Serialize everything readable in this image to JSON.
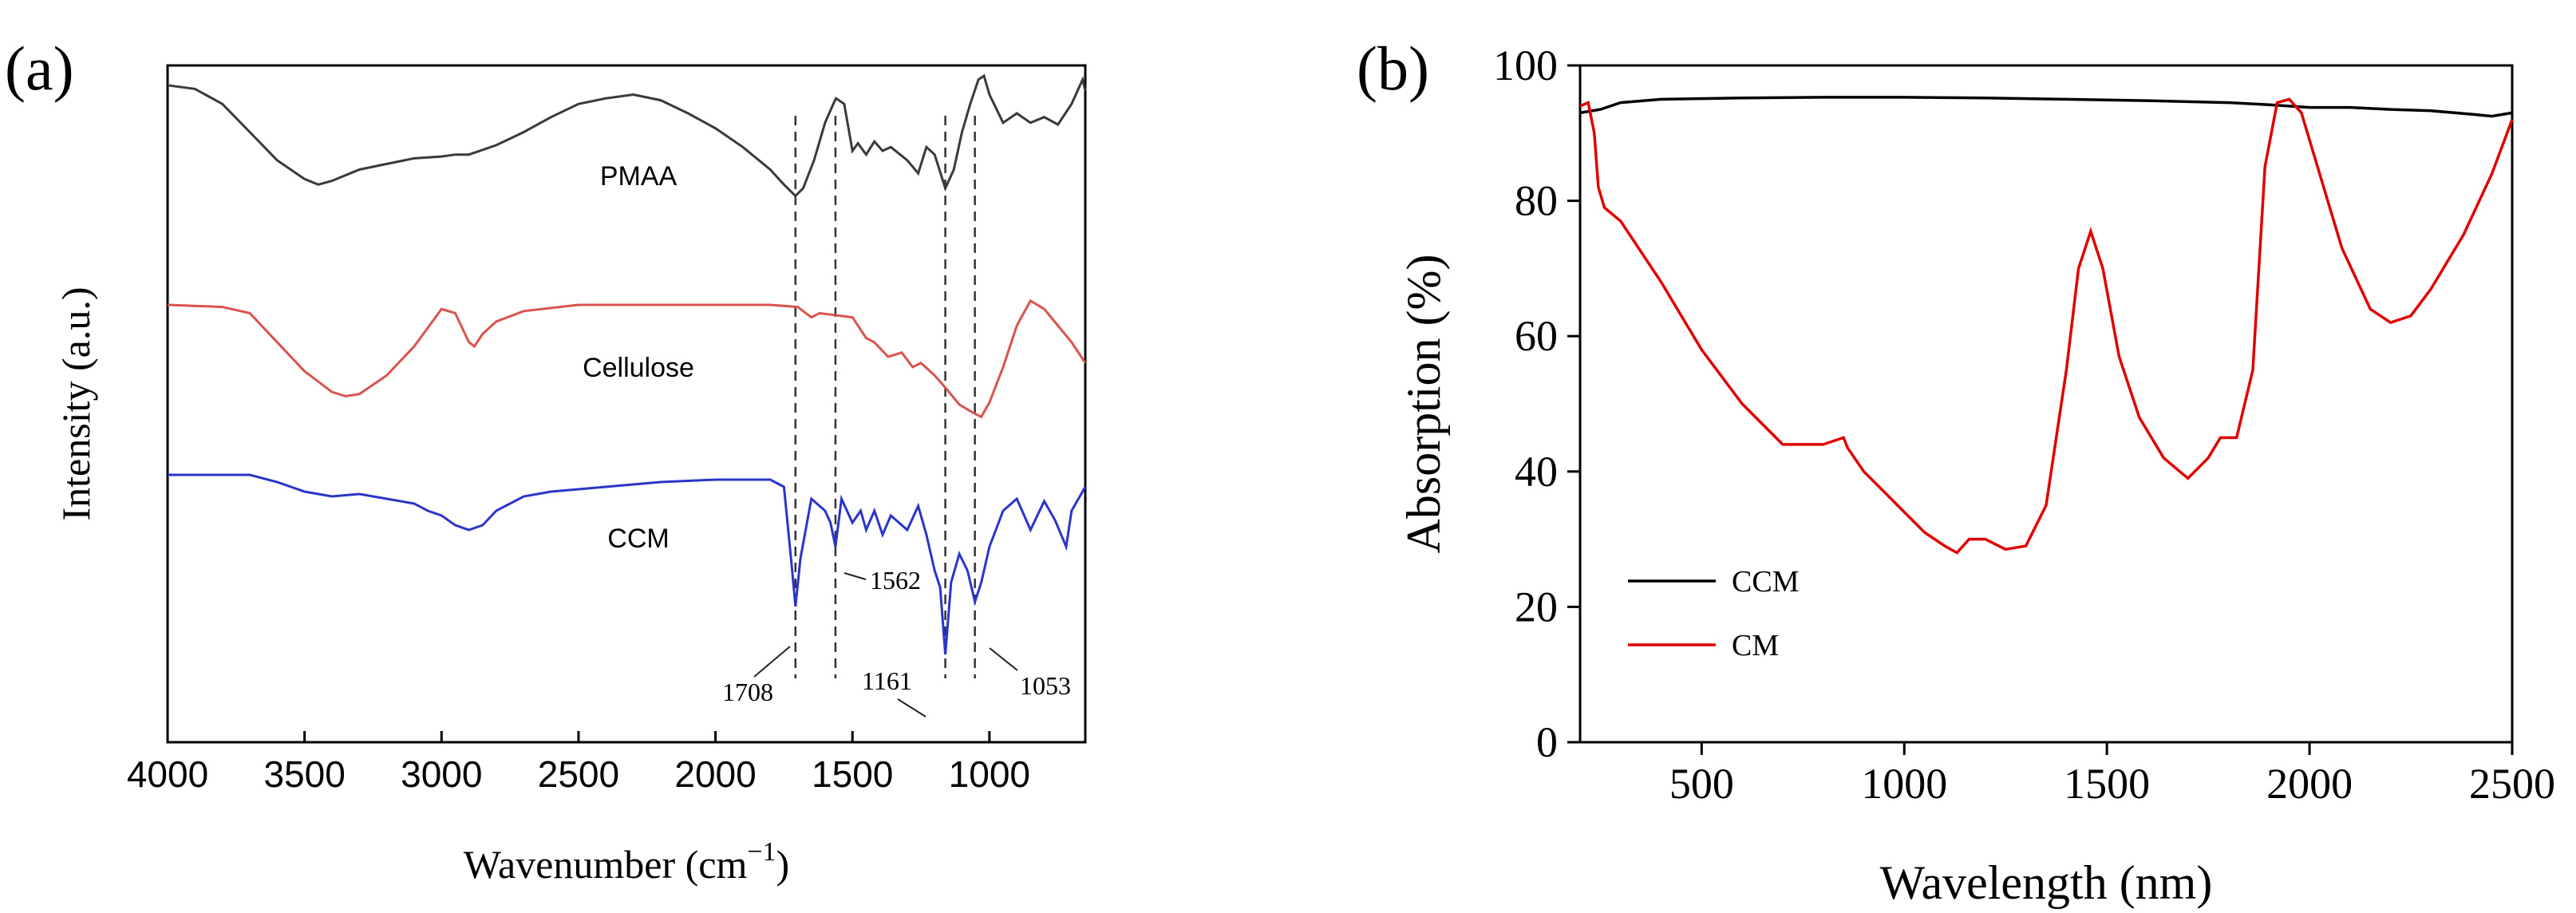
{
  "chart_data": [
    {
      "panel": "(a)",
      "type": "line",
      "xlabel": "Wavenumber (cm",
      "xlabel_sup": "−1",
      "xlabel_end": ")",
      "ylabel": "Intensity (a.u.)",
      "xlim": [
        4000,
        650
      ],
      "x_reversed": true,
      "x_ticks": [
        4000,
        3500,
        3000,
        2500,
        2000,
        1500,
        1000
      ],
      "y_ticks": [],
      "y_units": "arbitrary (normalized, stacked)",
      "series": [
        {
          "name": "PMAA",
          "color": "#3a3a3a",
          "points": [
            [
              4000,
              0.95
            ],
            [
              3900,
              0.93
            ],
            [
              3800,
              0.85
            ],
            [
              3700,
              0.7
            ],
            [
              3600,
              0.55
            ],
            [
              3500,
              0.45
            ],
            [
              3450,
              0.42
            ],
            [
              3400,
              0.44
            ],
            [
              3300,
              0.5
            ],
            [
              3200,
              0.53
            ],
            [
              3100,
              0.56
            ],
            [
              3000,
              0.57
            ],
            [
              2950,
              0.58
            ],
            [
              2900,
              0.58
            ],
            [
              2800,
              0.63
            ],
            [
              2700,
              0.7
            ],
            [
              2600,
              0.78
            ],
            [
              2500,
              0.85
            ],
            [
              2400,
              0.88
            ],
            [
              2300,
              0.9
            ],
            [
              2200,
              0.87
            ],
            [
              2100,
              0.8
            ],
            [
              2000,
              0.72
            ],
            [
              1900,
              0.62
            ],
            [
              1800,
              0.5
            ],
            [
              1750,
              0.42
            ],
            [
              1708,
              0.36
            ],
            [
              1680,
              0.4
            ],
            [
              1640,
              0.55
            ],
            [
              1600,
              0.75
            ],
            [
              1570,
              0.85
            ],
            [
              1560,
              0.88
            ],
            [
              1530,
              0.85
            ],
            [
              1500,
              0.6
            ],
            [
              1480,
              0.64
            ],
            [
              1450,
              0.58
            ],
            [
              1420,
              0.65
            ],
            [
              1390,
              0.6
            ],
            [
              1360,
              0.62
            ],
            [
              1300,
              0.55
            ],
            [
              1260,
              0.48
            ],
            [
              1230,
              0.62
            ],
            [
              1200,
              0.58
            ],
            [
              1161,
              0.4
            ],
            [
              1130,
              0.5
            ],
            [
              1100,
              0.7
            ],
            [
              1070,
              0.85
            ],
            [
              1040,
              0.98
            ],
            [
              1020,
              1.0
            ],
            [
              1000,
              0.9
            ],
            [
              950,
              0.75
            ],
            [
              900,
              0.8
            ],
            [
              850,
              0.75
            ],
            [
              800,
              0.78
            ],
            [
              750,
              0.74
            ],
            [
              700,
              0.85
            ],
            [
              660,
              0.98
            ],
            [
              650,
              0.92
            ]
          ]
        },
        {
          "name": "Cellulose",
          "color": "#d9534f",
          "points": [
            [
              4000,
              0.8
            ],
            [
              3800,
              0.79
            ],
            [
              3700,
              0.76
            ],
            [
              3600,
              0.62
            ],
            [
              3500,
              0.48
            ],
            [
              3400,
              0.38
            ],
            [
              3350,
              0.36
            ],
            [
              3300,
              0.37
            ],
            [
              3200,
              0.46
            ],
            [
              3100,
              0.6
            ],
            [
              3000,
              0.78
            ],
            [
              2950,
              0.76
            ],
            [
              2900,
              0.62
            ],
            [
              2880,
              0.6
            ],
            [
              2850,
              0.66
            ],
            [
              2800,
              0.72
            ],
            [
              2700,
              0.77
            ],
            [
              2500,
              0.8
            ],
            [
              2300,
              0.8
            ],
            [
              2000,
              0.8
            ],
            [
              1800,
              0.8
            ],
            [
              1700,
              0.79
            ],
            [
              1650,
              0.74
            ],
            [
              1620,
              0.76
            ],
            [
              1500,
              0.74
            ],
            [
              1450,
              0.64
            ],
            [
              1420,
              0.62
            ],
            [
              1370,
              0.55
            ],
            [
              1320,
              0.57
            ],
            [
              1280,
              0.5
            ],
            [
              1250,
              0.52
            ],
            [
              1200,
              0.46
            ],
            [
              1160,
              0.4
            ],
            [
              1110,
              0.32
            ],
            [
              1060,
              0.28
            ],
            [
              1030,
              0.26
            ],
            [
              1000,
              0.33
            ],
            [
              950,
              0.5
            ],
            [
              900,
              0.7
            ],
            [
              850,
              0.82
            ],
            [
              800,
              0.78
            ],
            [
              750,
              0.7
            ],
            [
              700,
              0.62
            ],
            [
              650,
              0.52
            ]
          ]
        },
        {
          "name": "CCM",
          "color": "#2a35c9",
          "points": [
            [
              4000,
              0.95
            ],
            [
              3800,
              0.95
            ],
            [
              3700,
              0.95
            ],
            [
              3600,
              0.92
            ],
            [
              3500,
              0.88
            ],
            [
              3400,
              0.86
            ],
            [
              3300,
              0.87
            ],
            [
              3200,
              0.85
            ],
            [
              3100,
              0.83
            ],
            [
              3050,
              0.8
            ],
            [
              3000,
              0.78
            ],
            [
              2950,
              0.74
            ],
            [
              2900,
              0.72
            ],
            [
              2850,
              0.74
            ],
            [
              2800,
              0.8
            ],
            [
              2700,
              0.86
            ],
            [
              2600,
              0.88
            ],
            [
              2500,
              0.89
            ],
            [
              2400,
              0.9
            ],
            [
              2300,
              0.91
            ],
            [
              2200,
              0.92
            ],
            [
              2000,
              0.93
            ],
            [
              1800,
              0.93
            ],
            [
              1750,
              0.9
            ],
            [
              1720,
              0.55
            ],
            [
              1708,
              0.4
            ],
            [
              1690,
              0.6
            ],
            [
              1650,
              0.85
            ],
            [
              1600,
              0.8
            ],
            [
              1580,
              0.75
            ],
            [
              1562,
              0.65
            ],
            [
              1540,
              0.85
            ],
            [
              1500,
              0.75
            ],
            [
              1470,
              0.8
            ],
            [
              1450,
              0.72
            ],
            [
              1420,
              0.8
            ],
            [
              1390,
              0.7
            ],
            [
              1360,
              0.78
            ],
            [
              1300,
              0.72
            ],
            [
              1260,
              0.82
            ],
            [
              1230,
              0.7
            ],
            [
              1200,
              0.55
            ],
            [
              1180,
              0.48
            ],
            [
              1161,
              0.2
            ],
            [
              1140,
              0.5
            ],
            [
              1110,
              0.62
            ],
            [
              1080,
              0.55
            ],
            [
              1053,
              0.42
            ],
            [
              1030,
              0.5
            ],
            [
              1000,
              0.65
            ],
            [
              950,
              0.8
            ],
            [
              900,
              0.85
            ],
            [
              850,
              0.72
            ],
            [
              800,
              0.84
            ],
            [
              760,
              0.76
            ],
            [
              720,
              0.65
            ],
            [
              700,
              0.8
            ],
            [
              650,
              0.9
            ]
          ]
        }
      ],
      "series_labels": [
        "PMAA",
        "Cellulose",
        "CCM"
      ],
      "reference_lines": [
        1708,
        1562,
        1161,
        1053
      ],
      "peak_labels": [
        "1708",
        "1562",
        "1161",
        "1053"
      ]
    },
    {
      "panel": "(b)",
      "type": "line",
      "xlabel": "Wavelength (nm)",
      "ylabel": "Absorption (%)",
      "xlim": [
        200,
        2500
      ],
      "ylim": [
        0,
        100
      ],
      "x_ticks": [
        500,
        1000,
        1500,
        2000,
        2500
      ],
      "y_ticks": [
        0,
        20,
        40,
        60,
        80,
        100
      ],
      "grid": false,
      "legend_position": "bottom-left",
      "series": [
        {
          "name": "CCM",
          "color": "#000000",
          "points": [
            [
              200,
              93
            ],
            [
              250,
              93.5
            ],
            [
              300,
              94.5
            ],
            [
              400,
              95
            ],
            [
              600,
              95.2
            ],
            [
              800,
              95.3
            ],
            [
              1000,
              95.3
            ],
            [
              1200,
              95.2
            ],
            [
              1400,
              95
            ],
            [
              1600,
              94.8
            ],
            [
              1800,
              94.5
            ],
            [
              1900,
              94.2
            ],
            [
              2000,
              93.8
            ],
            [
              2100,
              93.8
            ],
            [
              2200,
              93.5
            ],
            [
              2300,
              93.3
            ],
            [
              2400,
              92.8
            ],
            [
              2450,
              92.5
            ],
            [
              2500,
              93
            ]
          ]
        },
        {
          "name": "CM",
          "color": "#e00000",
          "points": [
            [
              200,
              94
            ],
            [
              220,
              94.5
            ],
            [
              235,
              90
            ],
            [
              245,
              82
            ],
            [
              260,
              79
            ],
            [
              300,
              77
            ],
            [
              400,
              68
            ],
            [
              500,
              58
            ],
            [
              600,
              50
            ],
            [
              700,
              44
            ],
            [
              800,
              44
            ],
            [
              850,
              45
            ],
            [
              860,
              43.5
            ],
            [
              900,
              40
            ],
            [
              950,
              37
            ],
            [
              1000,
              34
            ],
            [
              1050,
              31
            ],
            [
              1100,
              29
            ],
            [
              1130,
              28
            ],
            [
              1160,
              30
            ],
            [
              1200,
              30
            ],
            [
              1250,
              28.5
            ],
            [
              1300,
              29
            ],
            [
              1350,
              35
            ],
            [
              1400,
              55
            ],
            [
              1430,
              70
            ],
            [
              1460,
              75.5
            ],
            [
              1490,
              70
            ],
            [
              1530,
              57
            ],
            [
              1580,
              48
            ],
            [
              1640,
              42
            ],
            [
              1700,
              39
            ],
            [
              1750,
              42
            ],
            [
              1780,
              45
            ],
            [
              1820,
              45
            ],
            [
              1860,
              55
            ],
            [
              1890,
              85
            ],
            [
              1920,
              94.5
            ],
            [
              1950,
              95
            ],
            [
              1980,
              93
            ],
            [
              2020,
              85
            ],
            [
              2080,
              73
            ],
            [
              2150,
              64
            ],
            [
              2200,
              62
            ],
            [
              2250,
              63
            ],
            [
              2300,
              67
            ],
            [
              2380,
              75
            ],
            [
              2450,
              84
            ],
            [
              2500,
              92
            ]
          ]
        }
      ]
    }
  ]
}
